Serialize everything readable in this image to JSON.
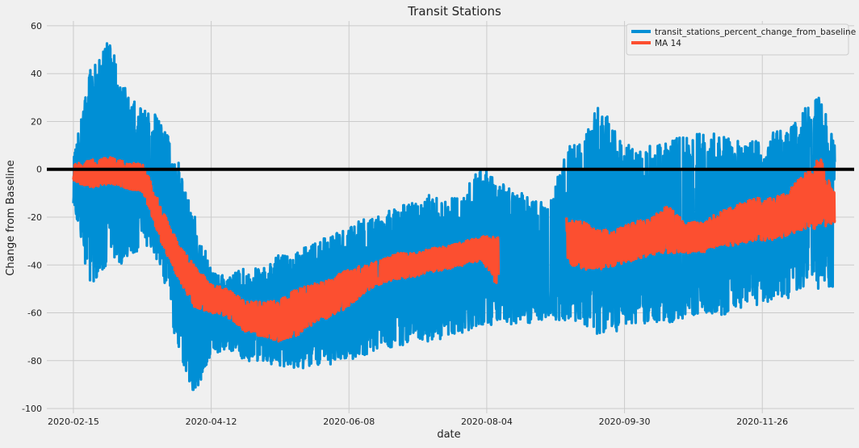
{
  "chart_data": {
    "type": "line",
    "title": "Transit Stations",
    "xlabel": "date",
    "ylabel": "Change from Baseline",
    "x_range": [
      "2020-02-04",
      "2021-01-03"
    ],
    "ylim": [
      -102,
      62
    ],
    "yticks": [
      -100,
      -80,
      -60,
      -40,
      -20,
      0,
      20,
      40,
      60
    ],
    "xticks": [
      "2020-02-15",
      "2020-04-12",
      "2020-06-08",
      "2020-08-04",
      "2020-09-30",
      "2020-11-26"
    ],
    "grid": true,
    "legend_position": "top-right",
    "baseline_y": 0,
    "series": [
      {
        "name": "transit_stations_percent_change_from_baseline",
        "color": "#008fd5",
        "envelope": {
          "x": [
            "2020-02-15",
            "2020-02-22",
            "2020-03-01",
            "2020-03-08",
            "2020-03-15",
            "2020-03-22",
            "2020-03-29",
            "2020-04-05",
            "2020-04-12",
            "2020-04-19",
            "2020-04-26",
            "2020-05-03",
            "2020-05-10",
            "2020-05-17",
            "2020-05-24",
            "2020-05-31",
            "2020-06-07",
            "2020-06-14",
            "2020-06-21",
            "2020-06-28",
            "2020-07-05",
            "2020-07-12",
            "2020-07-19",
            "2020-07-26",
            "2020-08-02",
            "2020-08-09",
            "2020-08-16",
            "2020-08-23",
            "2020-08-30",
            "2020-09-06",
            "2020-09-13",
            "2020-09-20",
            "2020-09-27",
            "2020-10-04",
            "2020-10-11",
            "2020-10-18",
            "2020-10-25",
            "2020-11-01",
            "2020-11-08",
            "2020-11-15",
            "2020-11-22",
            "2020-11-29",
            "2020-12-06",
            "2020-12-13",
            "2020-12-20",
            "2020-12-26"
          ],
          "high": [
            8,
            42,
            55,
            32,
            25,
            22,
            5,
            -18,
            -42,
            -45,
            -40,
            -42,
            -35,
            -35,
            -30,
            -28,
            -25,
            -20,
            -18,
            -15,
            -14,
            -10,
            -12,
            -8,
            2,
            -5,
            -10,
            -10,
            -15,
            10,
            12,
            30,
            15,
            8,
            10,
            12,
            14,
            15,
            15,
            12,
            12,
            15,
            18,
            25,
            31,
            10
          ],
          "low": [
            -15,
            -50,
            -38,
            -41,
            -30,
            -40,
            -75,
            -95,
            -78,
            -75,
            -80,
            -82,
            -82,
            -84,
            -82,
            -82,
            -80,
            -78,
            -75,
            -75,
            -72,
            -72,
            -70,
            -68,
            -65,
            -65,
            -65,
            -65,
            -62,
            -65,
            -65,
            -70,
            -68,
            -65,
            -65,
            -65,
            -62,
            -60,
            -62,
            -58,
            -58,
            -55,
            -55,
            -50,
            -50,
            -50
          ],
          "approx_range": [
            -95,
            55
          ]
        }
      },
      {
        "name": "MA 14",
        "color": "#fc4f30",
        "x": [
          "2020-02-15",
          "2020-02-22",
          "2020-03-01",
          "2020-03-08",
          "2020-03-15",
          "2020-03-22",
          "2020-03-29",
          "2020-04-05",
          "2020-04-12",
          "2020-04-19",
          "2020-04-26",
          "2020-05-03",
          "2020-05-10",
          "2020-05-17",
          "2020-05-24",
          "2020-05-31",
          "2020-06-07",
          "2020-06-14",
          "2020-06-21",
          "2020-06-28",
          "2020-07-05",
          "2020-07-12",
          "2020-07-19",
          "2020-07-26",
          "2020-08-02",
          "2020-08-09",
          "2020-08-16",
          "2020-08-23",
          "2020-08-30",
          "2020-09-06",
          "2020-09-13",
          "2020-09-20",
          "2020-09-27",
          "2020-10-04",
          "2020-10-11",
          "2020-10-18",
          "2020-10-25",
          "2020-11-01",
          "2020-11-08",
          "2020-11-15",
          "2020-11-22",
          "2020-11-29",
          "2020-12-06",
          "2020-12-13",
          "2020-12-20",
          "2020-12-26"
        ],
        "high": [
          2,
          4,
          5,
          3,
          2,
          -15,
          -30,
          -40,
          -48,
          -50,
          -55,
          -55,
          -55,
          -50,
          -48,
          -46,
          -42,
          -40,
          -38,
          -35,
          -35,
          -33,
          -32,
          -30,
          -28,
          -28,
          null,
          null,
          null,
          -20,
          -22,
          -25,
          -25,
          -22,
          -20,
          -15,
          -22,
          -22,
          -18,
          -15,
          -12,
          -12,
          -10,
          -2,
          5,
          -10
        ],
        "low": [
          -5,
          -8,
          -6,
          -8,
          -10,
          -30,
          -45,
          -58,
          -60,
          -62,
          -68,
          -70,
          -72,
          -70,
          -65,
          -62,
          -58,
          -52,
          -48,
          -46,
          -45,
          -43,
          -42,
          -40,
          -38,
          -50,
          null,
          null,
          null,
          -40,
          -42,
          -42,
          -40,
          -38,
          -36,
          -35,
          -35,
          -35,
          -32,
          -32,
          -30,
          -30,
          -28,
          -25,
          -25,
          -22
        ]
      }
    ]
  }
}
